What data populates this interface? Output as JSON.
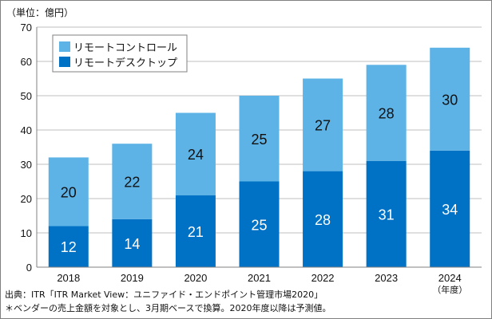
{
  "chart_data": {
    "type": "bar",
    "stacked": true,
    "unit_label": "（単位：億円）",
    "categories": [
      "2018",
      "2019",
      "2020",
      "2021",
      "2022",
      "2023",
      "2024"
    ],
    "x_suffix_label": "（年度）",
    "ylim": [
      0,
      70
    ],
    "yticks": [
      0,
      10,
      20,
      30,
      40,
      50,
      60,
      70
    ],
    "series": [
      {
        "name": "リモートデスクトップ",
        "values": [
          12,
          14,
          21,
          25,
          28,
          31,
          34
        ],
        "color": "#0072C6",
        "label_color": "#ffffff"
      },
      {
        "name": "リモートコントロール",
        "values": [
          20,
          22,
          24,
          25,
          27,
          28,
          30
        ],
        "color": "#5DB3E6",
        "label_color": "#111111"
      }
    ],
    "legend_position": "top-left"
  },
  "footnotes": {
    "source": "出典：ITR「ITR Market View：ユニファイド・エンドポイント管理市場2020」",
    "note": "＊ベンダーの売上金額を対象とし、3月期ベースで換算。2020年度以降は予測値。"
  }
}
